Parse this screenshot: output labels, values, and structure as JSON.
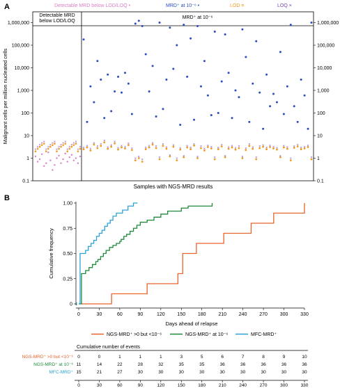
{
  "panelA": {
    "label": "A",
    "legend": [
      {
        "text": "Detectable MRD below LOD/LOQ",
        "marker": "•",
        "color": "#d77fc4"
      },
      {
        "text": "MRD⁺ at 10⁻⁶",
        "marker": "•",
        "color": "#2a4dbf"
      },
      {
        "text": "LOD",
        "marker": "¤",
        "color": "#f29b1d"
      },
      {
        "text": "LOQ",
        "marker": "×",
        "color": "#7a3fb0"
      }
    ],
    "region_left": [
      "Detectable MRD",
      "below LOD/LOQ"
    ],
    "region_right": "MRD⁺ at 10⁻⁶"
  },
  "panelB": {
    "label": "B",
    "legend": [
      {
        "text": "NGS-MRD⁺ >0 but <10⁻⁶",
        "color": "#e8642a"
      },
      {
        "text": "NGS-MRD⁺ at 10⁻⁶",
        "color": "#1c8a3a"
      },
      {
        "text": "MFC-MRD⁺",
        "color": "#2aa3d4"
      }
    ],
    "table_title": "Cumulative number of events",
    "table_rows": [
      {
        "label": "NGS-MRD⁺ >0 but <10⁻⁶",
        "color": "#e8642a",
        "values": [
          "0",
          "0",
          "1",
          "1",
          "1",
          "3",
          "5",
          "6",
          "7",
          "8",
          "9",
          "10"
        ]
      },
      {
        "label": "NGS-MRD⁺ at 10⁻⁶",
        "color": "#1c8a3a",
        "values": [
          "11",
          "14",
          "22",
          "28",
          "32",
          "35",
          "35",
          "36",
          "36",
          "36",
          "36",
          "36"
        ]
      },
      {
        "label": "MFC-MRD⁺",
        "color": "#2aa3d4",
        "values": [
          "15",
          "21",
          "27",
          "30",
          "30",
          "30",
          "30",
          "30",
          "30",
          "30",
          "30",
          "30"
        ]
      }
    ],
    "table_x_labels": [
      "0",
      "30",
      "60",
      "90",
      "120",
      "150",
      "180",
      "210",
      "240",
      "270",
      "300",
      "330"
    ]
  },
  "chart_data": [
    {
      "type": "scatter",
      "title": "",
      "xlabel": "Samples with NGS-MRD results",
      "ylabel": "Malignant cells per million nucleated cells",
      "yscale": "log",
      "ylim": [
        0.1,
        3000000
      ],
      "yticks": [
        "0.1",
        "1",
        "10",
        "100",
        "1,000",
        "10,000",
        "100,000",
        "1,000,000"
      ],
      "ytick_values": [
        0.1,
        1,
        10,
        100,
        1000,
        10000,
        100000,
        1000000
      ],
      "grid": false,
      "series": [
        {
          "name": "Detectable MRD below LOD/LOQ",
          "values": [
            1.2,
            0.7,
            0.9,
            1.5,
            0.45,
            0.6,
            1.8,
            0.8,
            0.3,
            0.5,
            1.0,
            1.3,
            0.6,
            0.9,
            1.6,
            0.7,
            1.1,
            1.4,
            0.8,
            1.0,
            0.6,
            1.2
          ]
        },
        {
          "name": "MRD⁺ at 10⁻⁶",
          "values": [
            180000,
            40,
            1500,
            300,
            20000,
            3000,
            60,
            5000,
            120,
            900,
            4000,
            800,
            6000,
            2000,
            90,
            900000,
            1200000,
            700000,
            40000,
            900,
            12000,
            70,
            1000000,
            150,
            3000,
            600000,
            9000,
            100000,
            30,
            800000,
            4000,
            200000,
            50,
            700000,
            1500,
            20000,
            600,
            80,
            400000,
            100,
            2500,
            300000,
            6000,
            60,
            1000,
            500,
            500000,
            30000,
            40,
            2000,
            150000,
            800,
            20,
            5000,
            200,
            700,
            300,
            50000,
            90,
            1500,
            800000,
            200,
            40,
            3000,
            600,
            20,
            1000000
          ]
        },
        {
          "name": "LOD",
          "values": [
            2.5,
            3,
            2.2,
            4,
            2.8,
            3.5,
            5,
            2.6,
            3.2,
            4.5,
            2.4,
            3,
            2.7,
            3.8,
            2.3,
            0.8,
            1.0,
            0.7,
            2.5,
            3,
            4,
            2.8,
            0.9,
            3.5,
            2.6,
            1.2,
            3.2,
            0.8,
            2.4,
            1.1,
            3,
            2.5,
            3.6,
            1.0,
            2.8,
            2.2,
            3.1,
            2.7,
            0.9,
            2.5,
            3.3,
            1.1,
            2.6,
            3,
            2.4,
            2.8,
            1.0,
            2.3,
            3.5,
            2.6,
            0.9,
            2.8,
            3.2,
            2.5,
            3.1,
            2.7,
            2.4,
            1.1,
            3,
            2.6,
            0.8,
            2.9,
            3.3,
            2.5,
            2.7,
            3.1,
            0.9
          ]
        },
        {
          "name": "LOQ",
          "values": [
            3,
            3.6,
            2.7,
            4.8,
            3.4,
            4.2,
            6,
            3.1,
            3.9,
            5.4,
            2.9,
            3.6,
            3.2,
            4.6,
            2.8,
            1.0,
            1.2,
            0.9,
            3,
            3.6,
            4.8,
            3.4,
            1.1,
            4.2,
            3.1,
            1.4,
            3.9,
            1.0,
            2.9,
            1.3,
            3.6,
            3,
            4.3,
            1.2,
            3.4,
            2.7,
            3.7,
            3.2,
            1.1,
            3,
            4,
            1.3,
            3.1,
            3.6,
            2.9,
            3.4,
            1.2,
            2.8,
            4.2,
            3.1,
            1.1,
            3.4,
            3.9,
            3,
            3.7,
            3.2,
            2.9,
            1.3,
            3.6,
            3.1,
            1.0,
            3.5,
            4,
            3,
            3.2,
            3.7,
            1.1
          ]
        }
      ]
    },
    {
      "type": "line",
      "title": "",
      "xlabel": "Days ahead of relapse",
      "ylabel": "Cumulative frequency",
      "xlim": [
        0,
        330
      ],
      "ylim": [
        0,
        1.0
      ],
      "xticks": [
        0,
        30,
        60,
        90,
        120,
        150,
        180,
        210,
        240,
        270,
        300,
        330
      ],
      "yticks": [
        0,
        0.25,
        0.5,
        0.75,
        1.0
      ],
      "ytick_labels": [
        "0",
        "0.25",
        "0.50",
        "0.75",
        "1.00"
      ],
      "grid": false,
      "series": [
        {
          "name": "NGS-MRD⁺ >0 but <10⁻⁶",
          "x": [
            0,
            48,
            100,
            145,
            152,
            172,
            212,
            252,
            285,
            330
          ],
          "y": [
            0,
            0.1,
            0.2,
            0.3,
            0.5,
            0.6,
            0.7,
            0.8,
            0.9,
            1.0
          ]
        },
        {
          "name": "NGS-MRD⁺ at 10⁻⁶",
          "x": [
            0,
            4,
            10,
            15,
            20,
            25,
            28,
            32,
            36,
            40,
            45,
            50,
            55,
            60,
            62,
            66,
            70,
            75,
            80,
            85,
            90,
            100,
            110,
            120,
            130,
            150,
            160,
            195
          ],
          "y": [
            0,
            0.3,
            0.33,
            0.36,
            0.39,
            0.42,
            0.44,
            0.47,
            0.5,
            0.53,
            0.56,
            0.58,
            0.6,
            0.62,
            0.64,
            0.67,
            0.69,
            0.72,
            0.75,
            0.78,
            0.81,
            0.83,
            0.86,
            0.89,
            0.92,
            0.95,
            0.97,
            1.0
          ]
        },
        {
          "name": "MFC-MRD⁺",
          "x": [
            0,
            2,
            10,
            14,
            18,
            22,
            26,
            30,
            34,
            38,
            42,
            46,
            50,
            55,
            60,
            64,
            68,
            72,
            76,
            80,
            86
          ],
          "y": [
            0,
            0.5,
            0.53,
            0.57,
            0.6,
            0.63,
            0.67,
            0.7,
            0.73,
            0.77,
            0.8,
            0.83,
            0.87,
            0.9,
            0.9,
            0.93,
            0.93,
            0.97,
            0.97,
            1.0,
            1.0
          ]
        }
      ]
    }
  ]
}
